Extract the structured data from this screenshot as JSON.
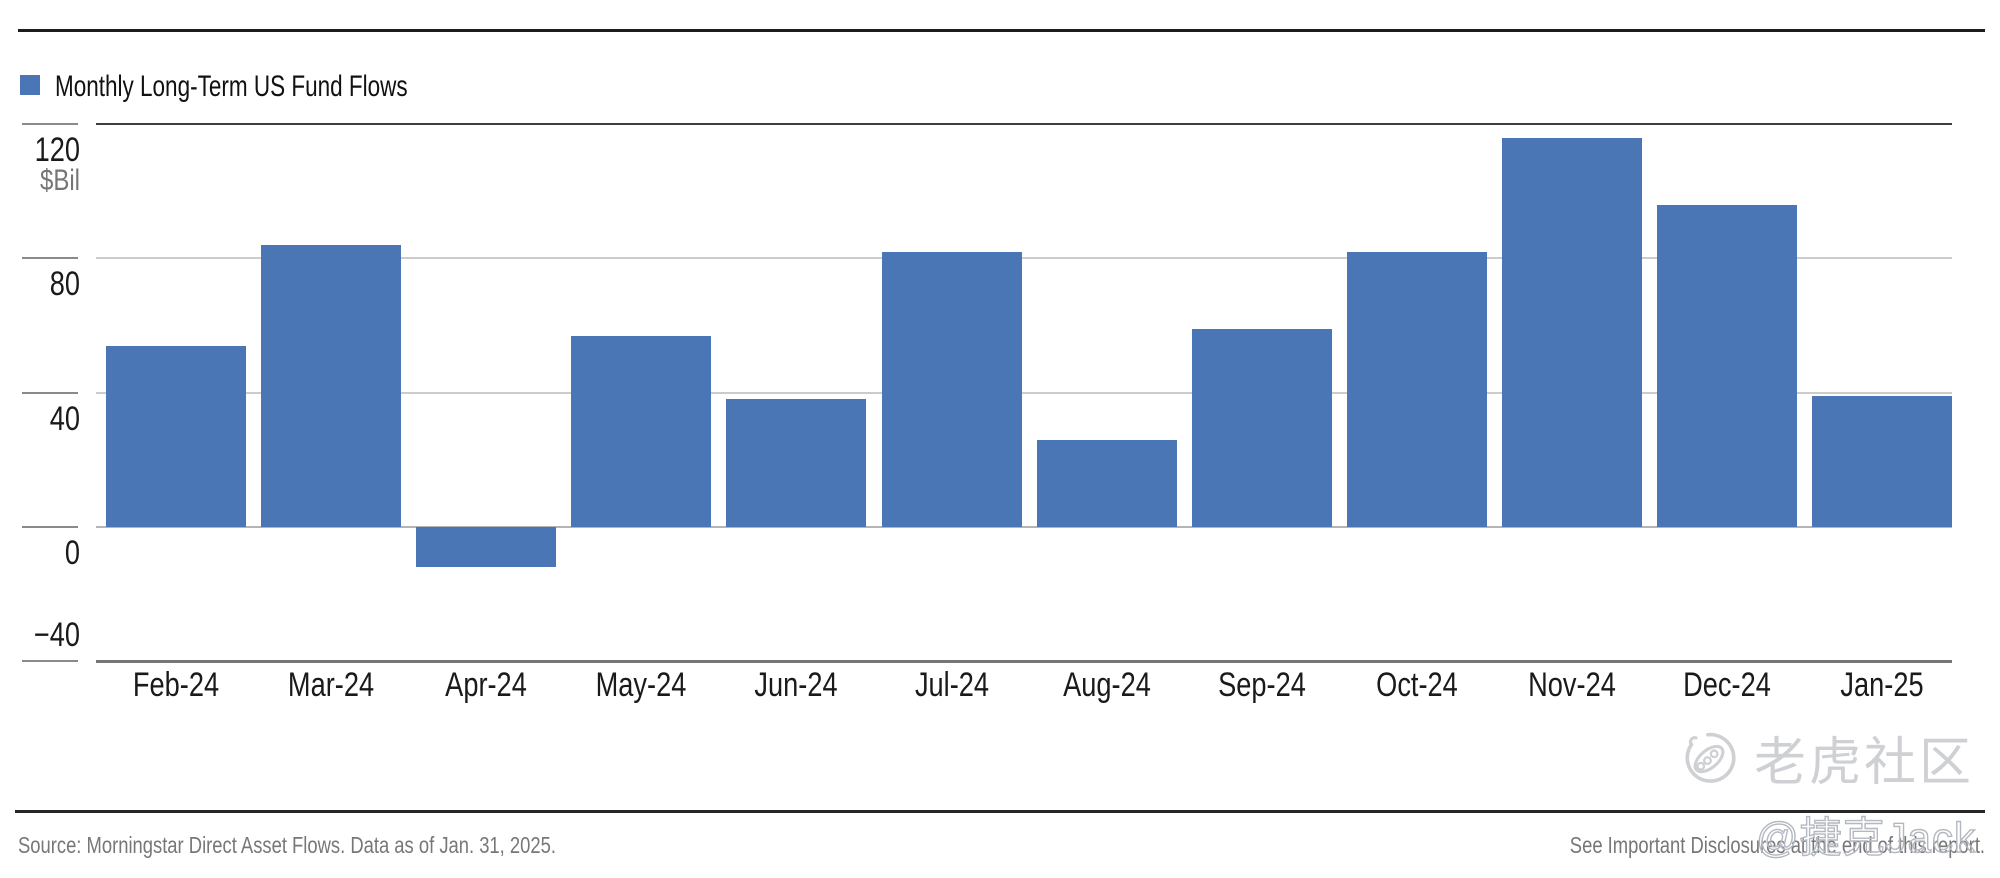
{
  "legend": {
    "label": "Monthly Long-Term US Fund Flows",
    "swatch_color": "#4b76b6"
  },
  "chart_data": {
    "type": "bar",
    "title": "Monthly Long-Term US Fund Flows",
    "unit": "$Bil",
    "ylabel": "$Bil",
    "categories": [
      "Feb-24",
      "Mar-24",
      "Apr-24",
      "May-24",
      "Jun-24",
      "Jul-24",
      "Aug-24",
      "Sep-24",
      "Oct-24",
      "Nov-24",
      "Dec-24",
      "Jan-25"
    ],
    "values": [
      54,
      84,
      -12,
      57,
      38,
      82,
      26,
      59,
      82,
      116,
      96,
      39
    ],
    "ylim": [
      -40,
      130
    ],
    "yticks": [
      120,
      80,
      40,
      0,
      -40
    ],
    "ytick_labels": [
      "120",
      "80",
      "40",
      "0",
      "−40"
    ],
    "grid": "horizontal",
    "legend_position": "top-left",
    "bar_color": "#4b76b6"
  },
  "footer": {
    "source": "Source: Morningstar Direct Asset Flows. Data as of Jan. 31, 2025.",
    "disclosure": "See Important Disclosures at the end of this report."
  },
  "watermark": {
    "handle": "@捷克Jack",
    "community_logo_text": "老虎社区"
  }
}
